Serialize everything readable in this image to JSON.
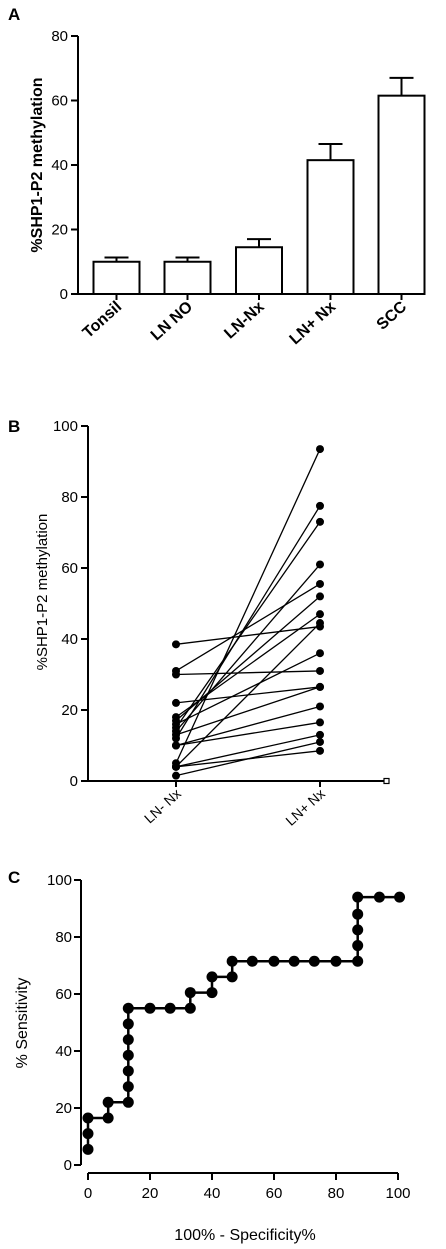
{
  "panels": {
    "a": {
      "label": "A"
    },
    "b": {
      "label": "B"
    },
    "c": {
      "label": "C"
    }
  },
  "chart_data": [
    {
      "type": "bar",
      "panel": "A",
      "ylabel": "%SHP1-P2 methylation",
      "xlabel": "",
      "ylim": [
        0,
        80
      ],
      "yticks": [
        0,
        20,
        40,
        60,
        80
      ],
      "categories": [
        "Tonsil",
        "LN NO",
        "LN-Nx",
        "LN+ Nx",
        "SCC"
      ],
      "values": [
        10,
        10,
        14.5,
        41.5,
        61.5
      ],
      "errors": [
        1.3,
        1.3,
        2.5,
        5,
        5.5
      ],
      "error_bars": "upper only",
      "bar_fill": "#ffffff",
      "bar_stroke": "#000000"
    },
    {
      "type": "line",
      "panel": "B",
      "ylabel": "%SHP1-P2 methylation",
      "xlabel": "",
      "ylim": [
        0,
        100
      ],
      "yticks": [
        0,
        20,
        40,
        60,
        80,
        100
      ],
      "categories": [
        "LN- Nx",
        "LN+ Nx"
      ],
      "pairs": [
        [
          38.5,
          43.5
        ],
        [
          31,
          55.5
        ],
        [
          30,
          31
        ],
        [
          22,
          26.5
        ],
        [
          18,
          47
        ],
        [
          17,
          52
        ],
        [
          16,
          36
        ],
        [
          15,
          73
        ],
        [
          14,
          61
        ],
        [
          13,
          26.5
        ],
        [
          12,
          77.5
        ],
        [
          10,
          21
        ],
        [
          10,
          16.5
        ],
        [
          5,
          93.5
        ],
        [
          4,
          44.5
        ],
        [
          4,
          13
        ],
        [
          4,
          8.5
        ],
        [
          1.5,
          11
        ]
      ],
      "marker_color": "#000000"
    },
    {
      "type": "line",
      "panel": "C",
      "ylabel": "% Sensitivity",
      "xlabel": "100% - Specificity%",
      "xlim": [
        0,
        100
      ],
      "ylim": [
        0,
        100
      ],
      "xticks": [
        0,
        20,
        40,
        60,
        80,
        100
      ],
      "yticks": [
        0,
        20,
        40,
        60,
        80,
        100
      ],
      "line_style": "step",
      "points": [
        [
          0,
          5.5
        ],
        [
          0,
          11
        ],
        [
          0,
          16.5
        ],
        [
          6.5,
          16.5
        ],
        [
          6.5,
          22
        ],
        [
          13,
          22
        ],
        [
          13,
          27.5
        ],
        [
          13,
          33
        ],
        [
          13,
          38.5
        ],
        [
          13,
          44
        ],
        [
          13,
          49.5
        ],
        [
          13,
          55
        ],
        [
          20,
          55
        ],
        [
          26.5,
          55
        ],
        [
          33,
          55
        ],
        [
          33,
          60.5
        ],
        [
          40,
          60.5
        ],
        [
          40,
          66
        ],
        [
          46.5,
          66
        ],
        [
          46.5,
          71.5
        ],
        [
          53,
          71.5
        ],
        [
          60,
          71.5
        ],
        [
          66.5,
          71.5
        ],
        [
          73,
          71.5
        ],
        [
          80,
          71.5
        ],
        [
          87,
          71.5
        ],
        [
          87,
          77
        ],
        [
          87,
          82.5
        ],
        [
          87,
          88
        ],
        [
          87,
          94
        ],
        [
          94,
          94
        ],
        [
          100.5,
          94
        ]
      ]
    }
  ]
}
